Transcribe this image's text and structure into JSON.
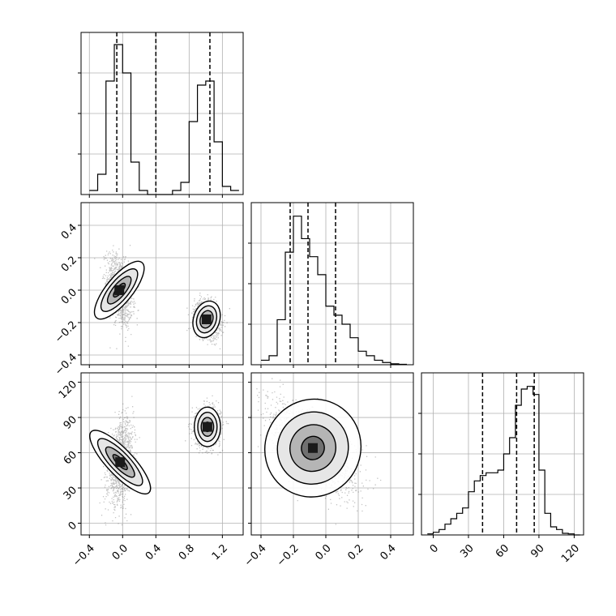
{
  "chart_data": {
    "type": "corner",
    "grid": true,
    "parameters": [
      {
        "index": 0,
        "range": [
          -0.5,
          1.45
        ],
        "ticks": [
          -0.4,
          0.0,
          0.4,
          0.8,
          1.2
        ],
        "tick_labels": [
          "−0.4",
          "0.0",
          "0.4",
          "0.8",
          "1.2"
        ],
        "quantiles": [
          -0.07,
          0.4,
          1.05
        ]
      },
      {
        "index": 1,
        "range": [
          -0.46,
          0.54
        ],
        "ticks": [
          -0.4,
          -0.2,
          0.0,
          0.2,
          0.4
        ],
        "tick_labels": [
          "−0.4",
          "−0.2",
          "0.0",
          "0.2",
          "0.4"
        ],
        "quantiles": [
          -0.22,
          -0.11,
          0.06
        ]
      },
      {
        "index": 2,
        "range": [
          -10,
          128
        ],
        "ticks": [
          0,
          30,
          60,
          90,
          120
        ],
        "tick_labels": [
          "0",
          "30",
          "60",
          "90",
          "120"
        ],
        "quantiles": [
          42,
          71,
          86
        ]
      }
    ],
    "histograms": [
      {
        "param": 0,
        "bin_edges": [
          -0.4,
          -0.3,
          -0.2,
          -0.1,
          0.0,
          0.1,
          0.2,
          0.3,
          0.4,
          0.5,
          0.6,
          0.7,
          0.8,
          0.9,
          1.0,
          1.1,
          1.2,
          1.3,
          1.4
        ],
        "counts": [
          1,
          5,
          28,
          37,
          30,
          8,
          1,
          0,
          0,
          0,
          1,
          3,
          18,
          27,
          28,
          13,
          2,
          1
        ],
        "ymax": 40
      },
      {
        "param": 1,
        "bin_edges": [
          -0.4,
          -0.35,
          -0.3,
          -0.25,
          -0.2,
          -0.15,
          -0.1,
          -0.05,
          0.0,
          0.05,
          0.1,
          0.15,
          0.2,
          0.25,
          0.3,
          0.35,
          0.4,
          0.45,
          0.5
        ],
        "counts": [
          1,
          2,
          10,
          25,
          33,
          28,
          24,
          20,
          13,
          11,
          9,
          6,
          3,
          2,
          1,
          0.5,
          0.2,
          0.1
        ],
        "ymax": 36
      },
      {
        "param": 2,
        "bin_edges": [
          -5,
          0,
          5,
          10,
          15,
          20,
          25,
          30,
          35,
          40,
          45,
          50,
          55,
          60,
          65,
          70,
          75,
          80,
          85,
          90,
          95,
          100,
          105,
          110,
          115,
          120,
          125
        ],
        "counts": [
          0.2,
          0.5,
          1,
          2,
          3,
          4,
          5,
          8,
          10,
          11,
          11.5,
          11.5,
          12,
          15,
          18,
          24,
          27,
          27.5,
          26,
          12,
          4,
          1.5,
          1,
          0.3,
          0.2,
          0
        ],
        "ymax": 30
      }
    ],
    "scatter_pairs": [
      {
        "x_param": 0,
        "y_param": 1,
        "clusters": [
          {
            "center": [
              -0.04,
              0.0
            ],
            "spread": [
              0.075,
              0.105
            ],
            "corr": -0.35
          },
          {
            "center": [
              1.01,
              -0.18
            ],
            "spread": [
              0.075,
              0.055
            ],
            "corr": -0.25
          }
        ]
      },
      {
        "x_param": 0,
        "y_param": 2,
        "clusters": [
          {
            "center": [
              -0.03,
              52
            ],
            "spread": [
              0.075,
              17
            ],
            "corr": 0.35
          },
          {
            "center": [
              1.02,
              82
            ],
            "spread": [
              0.075,
              8
            ],
            "corr": 0.0
          }
        ]
      },
      {
        "x_param": 1,
        "y_param": 2,
        "clusters": [
          {
            "center": [
              -0.08,
              64
            ],
            "spread": [
              0.14,
              20
            ],
            "corr": -0.65
          }
        ]
      }
    ]
  }
}
